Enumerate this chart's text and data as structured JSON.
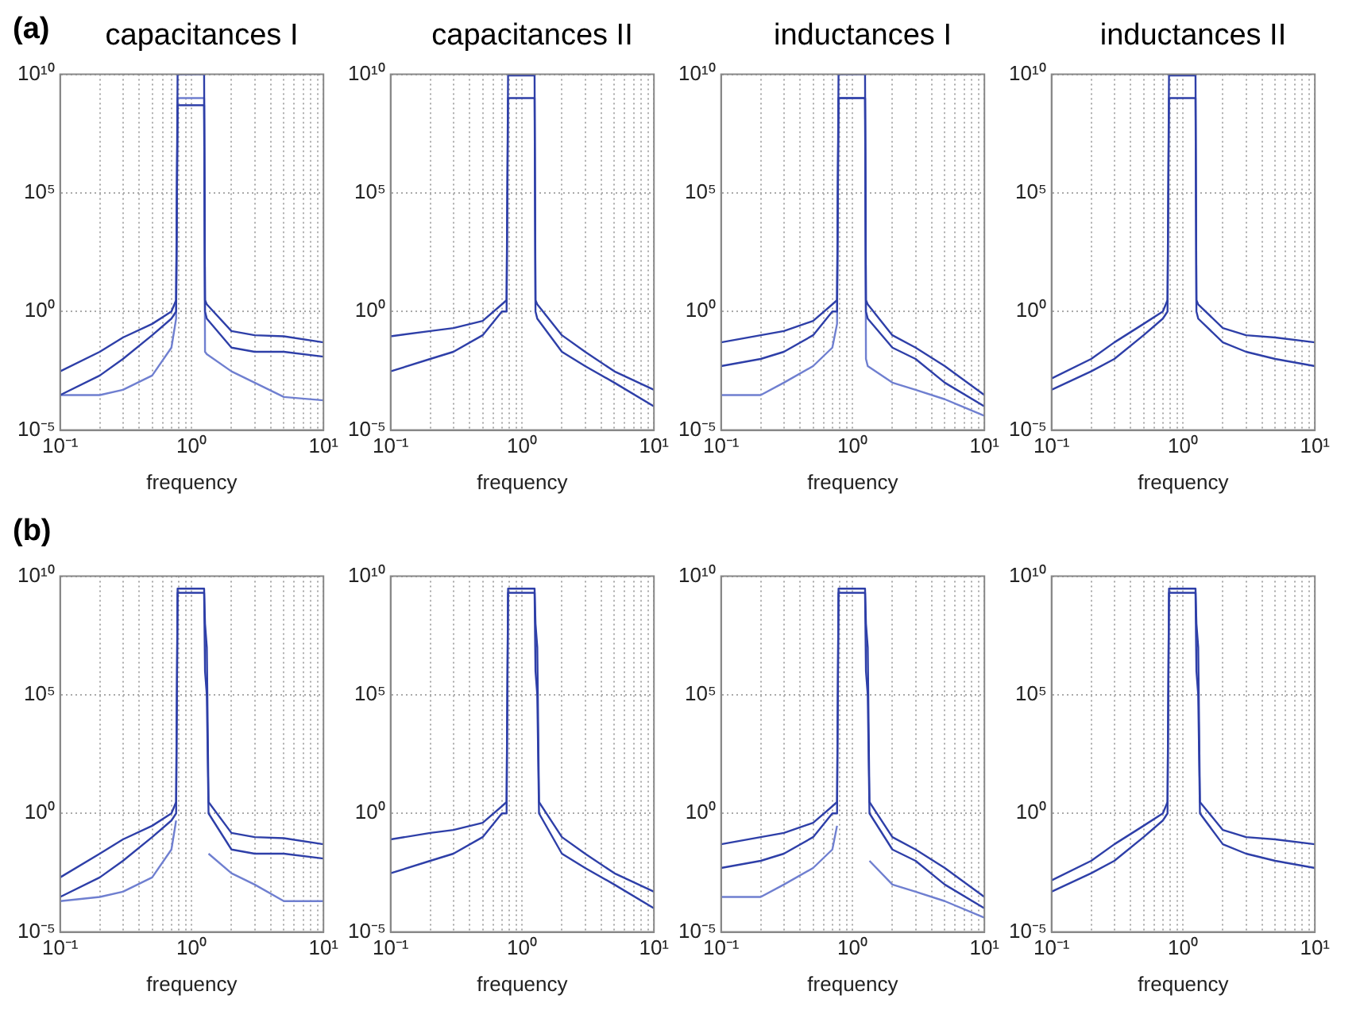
{
  "chart_data": [
    {
      "type": "line",
      "title": "capacitances I",
      "annotations": [
        "(a)"
      ],
      "xlabel": "frequency",
      "log": "xy",
      "grid": true,
      "xlim": [
        0.1,
        10
      ],
      "ylim": [
        1e-05,
        10000000000
      ],
      "xticks": [
        {
          "value": 0.1,
          "label": "10⁻¹"
        },
        {
          "value": 0.2,
          "label": null
        },
        {
          "value": 0.3,
          "label": null
        },
        {
          "value": 0.4,
          "label": null
        },
        {
          "value": 0.5,
          "label": null
        },
        {
          "value": 0.6,
          "label": null
        },
        {
          "value": 0.7,
          "label": null
        },
        {
          "value": 0.8,
          "label": null
        },
        {
          "value": 0.9,
          "label": null
        },
        {
          "value": 1,
          "label": "10⁰"
        },
        {
          "value": 2,
          "label": null
        },
        {
          "value": 3,
          "label": null
        },
        {
          "value": 4,
          "label": null
        },
        {
          "value": 5,
          "label": null
        },
        {
          "value": 6,
          "label": null
        },
        {
          "value": 7,
          "label": null
        },
        {
          "value": 8,
          "label": null
        },
        {
          "value": 9,
          "label": null
        },
        {
          "value": 10,
          "label": "10¹"
        }
      ],
      "yticks": [
        {
          "value": 1e-05,
          "label": "10⁻⁵"
        },
        {
          "value": 1,
          "label": "10⁰"
        },
        {
          "value": 100000,
          "label": "10⁵"
        },
        {
          "value": 10000000000,
          "label": "10¹⁰"
        }
      ],
      "x": [
        0.1,
        0.2,
        0.3,
        0.5,
        0.7,
        0.76,
        0.78,
        1.24,
        1.26,
        1.3,
        2,
        3,
        5,
        10
      ],
      "series": [
        {
          "color": "#2e3fa8",
          "values": [
            0.003,
            0.02,
            0.08,
            0.3,
            1,
            3,
            10000000000.0,
            10000000000.0,
            3,
            2,
            0.15,
            0.1,
            0.09,
            0.05
          ]
        },
        {
          "color": "#2e3fa8",
          "values": [
            0.0003,
            0.002,
            0.01,
            0.1,
            0.5,
            1,
            500000000.0,
            500000000.0,
            1,
            0.5,
            0.03,
            0.02,
            0.02,
            0.0125
          ]
        },
        {
          "color": "#6f7fd0",
          "values": [
            0.0003,
            0.0003,
            0.0005,
            0.002,
            0.03,
            0.5,
            1000000000.0,
            1000000000.0,
            0.02,
            0.016,
            0.003,
            0.001,
            0.00025,
            0.00018
          ]
        }
      ]
    },
    {
      "type": "line",
      "title": "capacitances II",
      "xlabel": "frequency",
      "log": "xy",
      "grid": true,
      "xlim": [
        0.1,
        10
      ],
      "ylim": [
        1e-05,
        10000000000
      ],
      "xticks": [
        {
          "value": 0.1,
          "label": "10⁻¹"
        },
        {
          "value": 0.2,
          "label": null
        },
        {
          "value": 0.3,
          "label": null
        },
        {
          "value": 0.4,
          "label": null
        },
        {
          "value": 0.5,
          "label": null
        },
        {
          "value": 0.6,
          "label": null
        },
        {
          "value": 0.7,
          "label": null
        },
        {
          "value": 0.8,
          "label": null
        },
        {
          "value": 0.9,
          "label": null
        },
        {
          "value": 1,
          "label": "10⁰"
        },
        {
          "value": 2,
          "label": null
        },
        {
          "value": 3,
          "label": null
        },
        {
          "value": 4,
          "label": null
        },
        {
          "value": 5,
          "label": null
        },
        {
          "value": 6,
          "label": null
        },
        {
          "value": 7,
          "label": null
        },
        {
          "value": 8,
          "label": null
        },
        {
          "value": 9,
          "label": null
        },
        {
          "value": 10,
          "label": "10¹"
        }
      ],
      "yticks": [
        {
          "value": 1e-05,
          "label": "10⁻⁵"
        },
        {
          "value": 1,
          "label": "10⁰"
        },
        {
          "value": 100000,
          "label": "10⁵"
        },
        {
          "value": 10000000000,
          "label": "10¹⁰"
        }
      ],
      "x": [
        0.1,
        0.2,
        0.3,
        0.5,
        0.7,
        0.76,
        0.78,
        1.24,
        1.26,
        1.3,
        2,
        3,
        5,
        10
      ],
      "series": [
        {
          "color": "#2e3fa8",
          "values": [
            0.09,
            0.15,
            0.2,
            0.4,
            2,
            3,
            9000000000.0,
            9000000000.0,
            3,
            2,
            0.1,
            0.02,
            0.003,
            0.0005
          ]
        },
        {
          "color": "#2e3fa8",
          "values": [
            0.003,
            0.01,
            0.02,
            0.1,
            1,
            1,
            1000000000.0,
            1000000000.0,
            1,
            0.5,
            0.02,
            0.005,
            0.001,
            0.0001
          ]
        }
      ]
    },
    {
      "type": "line",
      "title": "inductances I",
      "xlabel": "frequency",
      "log": "xy",
      "grid": true,
      "xlim": [
        0.1,
        10
      ],
      "ylim": [
        1e-05,
        10000000000
      ],
      "xticks": [
        {
          "value": 0.1,
          "label": "10⁻¹"
        },
        {
          "value": 0.2,
          "label": null
        },
        {
          "value": 0.3,
          "label": null
        },
        {
          "value": 0.4,
          "label": null
        },
        {
          "value": 0.5,
          "label": null
        },
        {
          "value": 0.6,
          "label": null
        },
        {
          "value": 0.7,
          "label": null
        },
        {
          "value": 0.8,
          "label": null
        },
        {
          "value": 0.9,
          "label": null
        },
        {
          "value": 1,
          "label": "10⁰"
        },
        {
          "value": 2,
          "label": null
        },
        {
          "value": 3,
          "label": null
        },
        {
          "value": 4,
          "label": null
        },
        {
          "value": 5,
          "label": null
        },
        {
          "value": 6,
          "label": null
        },
        {
          "value": 7,
          "label": null
        },
        {
          "value": 8,
          "label": null
        },
        {
          "value": 9,
          "label": null
        },
        {
          "value": 10,
          "label": "10¹"
        }
      ],
      "yticks": [
        {
          "value": 1e-05,
          "label": "10⁻⁵"
        },
        {
          "value": 1,
          "label": "10⁰"
        },
        {
          "value": 100000,
          "label": "10⁵"
        },
        {
          "value": 10000000000,
          "label": "10¹⁰"
        }
      ],
      "x": [
        0.1,
        0.2,
        0.3,
        0.5,
        0.7,
        0.76,
        0.78,
        1.24,
        1.26,
        1.3,
        2,
        3,
        5,
        10
      ],
      "series": [
        {
          "color": "#2e3fa8",
          "values": [
            0.05,
            0.1,
            0.15,
            0.4,
            2,
            3,
            10000000000.0,
            10000000000.0,
            3,
            2,
            0.1,
            0.03,
            0.005,
            0.0003
          ]
        },
        {
          "color": "#2e3fa8",
          "values": [
            0.005,
            0.01,
            0.02,
            0.1,
            1,
            1,
            1000000000.0,
            1000000000.0,
            1,
            0.5,
            0.03,
            0.01,
            0.001,
            0.0001
          ]
        },
        {
          "color": "#6f7fd0",
          "values": [
            0.0003,
            0.0003,
            0.001,
            0.005,
            0.03,
            0.3,
            1000000000.0,
            1000000000.0,
            0.01,
            0.005,
            0.001,
            0.0005,
            0.0002,
            4e-05
          ]
        }
      ]
    },
    {
      "type": "line",
      "title": "inductances II",
      "xlabel": "frequency",
      "log": "xy",
      "grid": true,
      "xlim": [
        0.1,
        10
      ],
      "ylim": [
        1e-05,
        10000000000
      ],
      "xticks": [
        {
          "value": 0.1,
          "label": "10⁻¹"
        },
        {
          "value": 0.2,
          "label": null
        },
        {
          "value": 0.3,
          "label": null
        },
        {
          "value": 0.4,
          "label": null
        },
        {
          "value": 0.5,
          "label": null
        },
        {
          "value": 0.6,
          "label": null
        },
        {
          "value": 0.7,
          "label": null
        },
        {
          "value": 0.8,
          "label": null
        },
        {
          "value": 0.9,
          "label": null
        },
        {
          "value": 1,
          "label": "10⁰"
        },
        {
          "value": 2,
          "label": null
        },
        {
          "value": 3,
          "label": null
        },
        {
          "value": 4,
          "label": null
        },
        {
          "value": 5,
          "label": null
        },
        {
          "value": 6,
          "label": null
        },
        {
          "value": 7,
          "label": null
        },
        {
          "value": 8,
          "label": null
        },
        {
          "value": 9,
          "label": null
        },
        {
          "value": 10,
          "label": "10¹"
        }
      ],
      "yticks": [
        {
          "value": 1e-05,
          "label": "10⁻⁵"
        },
        {
          "value": 1,
          "label": "10⁰"
        },
        {
          "value": 100000,
          "label": "10⁵"
        },
        {
          "value": 10000000000,
          "label": "10¹⁰"
        }
      ],
      "x": [
        0.1,
        0.2,
        0.3,
        0.5,
        0.7,
        0.76,
        0.78,
        1.24,
        1.26,
        1.3,
        2,
        3,
        5,
        10
      ],
      "series": [
        {
          "color": "#2e3fa8",
          "values": [
            0.0015,
            0.01,
            0.05,
            0.3,
            1,
            3,
            9000000000.0,
            9000000000.0,
            3,
            2,
            0.2,
            0.1,
            0.08,
            0.05
          ]
        },
        {
          "color": "#2e3fa8",
          "values": [
            0.0005,
            0.003,
            0.01,
            0.1,
            0.5,
            1,
            1000000000.0,
            1000000000.0,
            1,
            0.5,
            0.05,
            0.02,
            0.01,
            0.005
          ]
        }
      ]
    },
    {
      "type": "line",
      "annotations": [
        "(b)"
      ],
      "xlabel": "frequency",
      "log": "xy",
      "grid": true,
      "xlim": [
        0.1,
        10
      ],
      "ylim": [
        1e-05,
        10000000000
      ],
      "xticks": [
        {
          "value": 0.1,
          "label": "10⁻¹"
        },
        {
          "value": 0.2,
          "label": null
        },
        {
          "value": 0.3,
          "label": null
        },
        {
          "value": 0.4,
          "label": null
        },
        {
          "value": 0.5,
          "label": null
        },
        {
          "value": 0.6,
          "label": null
        },
        {
          "value": 0.7,
          "label": null
        },
        {
          "value": 0.8,
          "label": null
        },
        {
          "value": 0.9,
          "label": null
        },
        {
          "value": 1,
          "label": "10⁰"
        },
        {
          "value": 2,
          "label": null
        },
        {
          "value": 3,
          "label": null
        },
        {
          "value": 4,
          "label": null
        },
        {
          "value": 5,
          "label": null
        },
        {
          "value": 6,
          "label": null
        },
        {
          "value": 7,
          "label": null
        },
        {
          "value": 8,
          "label": null
        },
        {
          "value": 9,
          "label": null
        },
        {
          "value": 10,
          "label": "10¹"
        }
      ],
      "yticks": [
        {
          "value": 1e-05,
          "label": "10⁻⁵"
        },
        {
          "value": 1,
          "label": "10⁰"
        },
        {
          "value": 100000,
          "label": "10⁵"
        },
        {
          "value": 10000000000,
          "label": "10¹⁰"
        }
      ],
      "x": [
        0.1,
        0.2,
        0.3,
        0.5,
        0.7,
        0.76,
        0.78,
        1.24,
        1.26,
        1.3,
        1.34,
        2,
        3,
        5,
        10
      ],
      "series": [
        {
          "color": "#2e3fa8",
          "values": [
            0.002,
            0.02,
            0.08,
            0.3,
            1,
            3,
            3000000000.0,
            3000000000.0,
            100000000.0,
            10000000.0,
            3,
            0.15,
            0.1,
            0.09,
            0.05
          ]
        },
        {
          "color": "#2e3fa8",
          "values": [
            0.0003,
            0.002,
            0.01,
            0.1,
            0.5,
            1,
            2000000000.0,
            2000000000.0,
            1000000.0,
            100000.0,
            1,
            0.03,
            0.02,
            0.02,
            0.0125
          ]
        },
        {
          "color": "#6f7fd0",
          "values": [
            0.0002,
            0.0003,
            0.0005,
            0.002,
            0.03,
            0.5,
            null,
            null,
            null,
            null,
            0.02,
            0.003,
            0.001,
            0.0002,
            0.0002
          ]
        }
      ]
    },
    {
      "type": "line",
      "xlabel": "frequency",
      "log": "xy",
      "grid": true,
      "xlim": [
        0.1,
        10
      ],
      "ylim": [
        1e-05,
        10000000000
      ],
      "xticks": [
        {
          "value": 0.1,
          "label": "10⁻¹"
        },
        {
          "value": 0.2,
          "label": null
        },
        {
          "value": 0.3,
          "label": null
        },
        {
          "value": 0.4,
          "label": null
        },
        {
          "value": 0.5,
          "label": null
        },
        {
          "value": 0.6,
          "label": null
        },
        {
          "value": 0.7,
          "label": null
        },
        {
          "value": 0.8,
          "label": null
        },
        {
          "value": 0.9,
          "label": null
        },
        {
          "value": 1,
          "label": "10⁰"
        },
        {
          "value": 2,
          "label": null
        },
        {
          "value": 3,
          "label": null
        },
        {
          "value": 4,
          "label": null
        },
        {
          "value": 5,
          "label": null
        },
        {
          "value": 6,
          "label": null
        },
        {
          "value": 7,
          "label": null
        },
        {
          "value": 8,
          "label": null
        },
        {
          "value": 9,
          "label": null
        },
        {
          "value": 10,
          "label": "10¹"
        }
      ],
      "yticks": [
        {
          "value": 1e-05,
          "label": "10⁻⁵"
        },
        {
          "value": 1,
          "label": "10⁰"
        },
        {
          "value": 100000,
          "label": "10⁵"
        },
        {
          "value": 10000000000,
          "label": "10¹⁰"
        }
      ],
      "x": [
        0.1,
        0.2,
        0.3,
        0.5,
        0.7,
        0.76,
        0.78,
        1.24,
        1.26,
        1.3,
        1.34,
        2,
        3,
        5,
        10
      ],
      "series": [
        {
          "color": "#2e3fa8",
          "values": [
            0.08,
            0.15,
            0.2,
            0.4,
            2,
            3,
            3000000000.0,
            3000000000.0,
            100000000.0,
            10000000.0,
            3,
            0.1,
            0.02,
            0.003,
            0.0005
          ]
        },
        {
          "color": "#2e3fa8",
          "values": [
            0.003,
            0.01,
            0.02,
            0.1,
            1,
            1,
            2000000000.0,
            2000000000.0,
            1000000.0,
            100000.0,
            1,
            0.02,
            0.005,
            0.001,
            0.0001
          ]
        }
      ]
    },
    {
      "type": "line",
      "xlabel": "frequency",
      "log": "xy",
      "grid": true,
      "xlim": [
        0.1,
        10
      ],
      "ylim": [
        1e-05,
        10000000000
      ],
      "xticks": [
        {
          "value": 0.1,
          "label": "10⁻¹"
        },
        {
          "value": 0.2,
          "label": null
        },
        {
          "value": 0.3,
          "label": null
        },
        {
          "value": 0.4,
          "label": null
        },
        {
          "value": 0.5,
          "label": null
        },
        {
          "value": 0.6,
          "label": null
        },
        {
          "value": 0.7,
          "label": null
        },
        {
          "value": 0.8,
          "label": null
        },
        {
          "value": 0.9,
          "label": null
        },
        {
          "value": 1,
          "label": "10⁰"
        },
        {
          "value": 2,
          "label": null
        },
        {
          "value": 3,
          "label": null
        },
        {
          "value": 4,
          "label": null
        },
        {
          "value": 5,
          "label": null
        },
        {
          "value": 6,
          "label": null
        },
        {
          "value": 7,
          "label": null
        },
        {
          "value": 8,
          "label": null
        },
        {
          "value": 9,
          "label": null
        },
        {
          "value": 10,
          "label": "10¹"
        }
      ],
      "yticks": [
        {
          "value": 1e-05,
          "label": "10⁻⁵"
        },
        {
          "value": 1,
          "label": "10⁰"
        },
        {
          "value": 100000,
          "label": "10⁵"
        },
        {
          "value": 10000000000,
          "label": "10¹⁰"
        }
      ],
      "x": [
        0.1,
        0.2,
        0.3,
        0.5,
        0.7,
        0.76,
        0.78,
        1.24,
        1.26,
        1.3,
        1.34,
        2,
        3,
        5,
        10
      ],
      "series": [
        {
          "color": "#2e3fa8",
          "values": [
            0.05,
            0.1,
            0.15,
            0.4,
            2,
            3,
            3000000000.0,
            3000000000.0,
            100000000.0,
            10000000.0,
            3,
            0.1,
            0.03,
            0.005,
            0.0003
          ]
        },
        {
          "color": "#2e3fa8",
          "values": [
            0.005,
            0.01,
            0.02,
            0.1,
            1,
            1,
            2000000000.0,
            2000000000.0,
            1000000.0,
            100000.0,
            1,
            0.03,
            0.01,
            0.001,
            0.0001
          ]
        },
        {
          "color": "#6f7fd0",
          "values": [
            0.0003,
            0.0003,
            0.001,
            0.005,
            0.03,
            0.3,
            null,
            null,
            null,
            null,
            0.01,
            0.001,
            0.0005,
            0.0002,
            4e-05
          ]
        }
      ]
    },
    {
      "type": "line",
      "xlabel": "frequency",
      "log": "xy",
      "grid": true,
      "xlim": [
        0.1,
        10
      ],
      "ylim": [
        1e-05,
        10000000000
      ],
      "xticks": [
        {
          "value": 0.1,
          "label": "10⁻¹"
        },
        {
          "value": 0.2,
          "label": null
        },
        {
          "value": 0.3,
          "label": null
        },
        {
          "value": 0.4,
          "label": null
        },
        {
          "value": 0.5,
          "label": null
        },
        {
          "value": 0.6,
          "label": null
        },
        {
          "value": 0.7,
          "label": null
        },
        {
          "value": 0.8,
          "label": null
        },
        {
          "value": 0.9,
          "label": null
        },
        {
          "value": 1,
          "label": "10⁰"
        },
        {
          "value": 2,
          "label": null
        },
        {
          "value": 3,
          "label": null
        },
        {
          "value": 4,
          "label": null
        },
        {
          "value": 5,
          "label": null
        },
        {
          "value": 6,
          "label": null
        },
        {
          "value": 7,
          "label": null
        },
        {
          "value": 8,
          "label": null
        },
        {
          "value": 9,
          "label": null
        },
        {
          "value": 10,
          "label": "10¹"
        }
      ],
      "yticks": [
        {
          "value": 1e-05,
          "label": "10⁻⁵"
        },
        {
          "value": 1,
          "label": "10⁰"
        },
        {
          "value": 100000,
          "label": "10⁵"
        },
        {
          "value": 10000000000,
          "label": "10¹⁰"
        }
      ],
      "x": [
        0.1,
        0.2,
        0.3,
        0.5,
        0.7,
        0.76,
        0.78,
        1.24,
        1.26,
        1.3,
        1.34,
        2,
        3,
        5,
        10
      ],
      "series": [
        {
          "color": "#2e3fa8",
          "values": [
            0.0015,
            0.01,
            0.05,
            0.3,
            1,
            3,
            3000000000.0,
            3000000000.0,
            100000000.0,
            10000000.0,
            3,
            0.2,
            0.1,
            0.08,
            0.05
          ]
        },
        {
          "color": "#2e3fa8",
          "values": [
            0.0005,
            0.003,
            0.01,
            0.1,
            0.5,
            1,
            2000000000.0,
            2000000000.0,
            1000000.0,
            100000.0,
            1,
            0.05,
            0.02,
            0.01,
            0.005
          ]
        }
      ]
    }
  ]
}
